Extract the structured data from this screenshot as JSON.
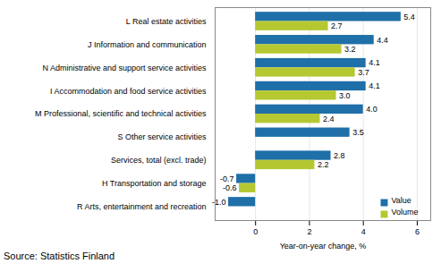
{
  "chart_data": {
    "type": "bar",
    "orientation": "horizontal",
    "categories": [
      "R Arts, entertainment and recreation",
      "H Transportation and storage",
      "Services, total (excl. trade)",
      "S Other service activities",
      "M Professional, scientific and technical activities",
      "I Accommodation and food service activities",
      "N Administrative and support service activities",
      "J Information and communication",
      "L Real estate activities"
    ],
    "series": [
      {
        "name": "Value",
        "color": "#1f6fa8",
        "values": [
          -1.0,
          -0.7,
          2.8,
          3.5,
          4.0,
          4.1,
          4.1,
          4.4,
          5.4
        ],
        "value_labels": [
          "-1.0",
          "-0.7",
          "2.8",
          "3.5",
          "4.0",
          "4.1",
          "4.1",
          "4.4",
          "5.4"
        ]
      },
      {
        "name": "Volume",
        "color": "#b5c832",
        "values": [
          null,
          -0.6,
          2.2,
          null,
          2.4,
          3.0,
          3.7,
          3.2,
          2.7
        ],
        "value_labels": [
          null,
          "-0.6",
          "2.2",
          null,
          "2.4",
          "3.0",
          "3.7",
          "3.2",
          "2.7"
        ]
      }
    ],
    "xlabel": "Year-on-year change, %",
    "xlim": [
      -1.5,
      6.5
    ],
    "xticks": [
      0,
      2,
      4,
      6
    ],
    "grid": true,
    "legend": "lower right",
    "data_labels": true,
    "caption": "Source: Statistics Finland"
  }
}
